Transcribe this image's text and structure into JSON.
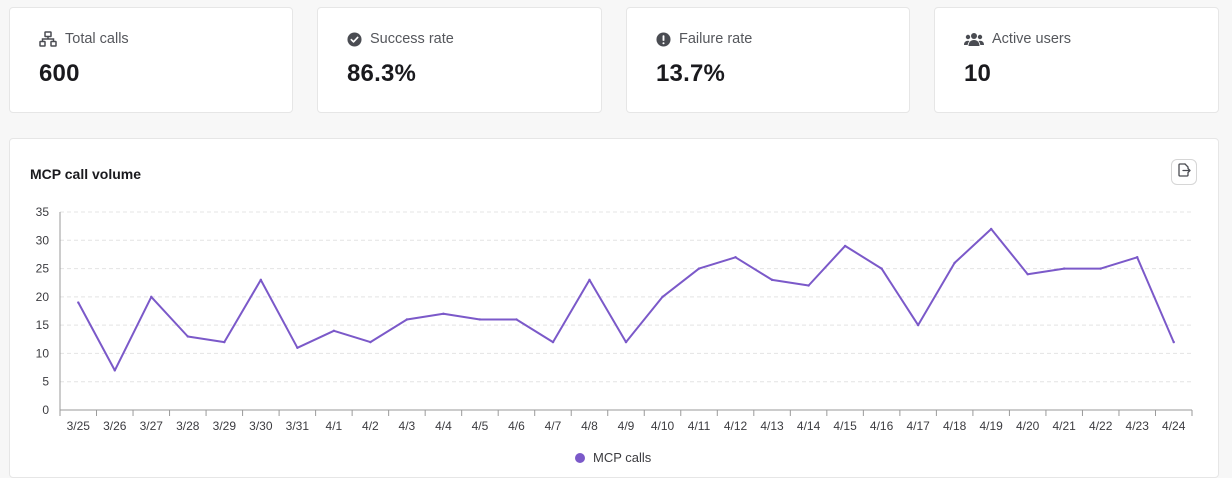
{
  "stats": [
    {
      "icon": "network-icon",
      "label": "Total calls",
      "value": "600"
    },
    {
      "icon": "check-circle-icon",
      "label": "Success rate",
      "value": "86.3%"
    },
    {
      "icon": "alert-circle-icon",
      "label": "Failure rate",
      "value": "13.7%"
    },
    {
      "icon": "users-icon",
      "label": "Active users",
      "value": "10"
    }
  ],
  "chart": {
    "title": "MCP call volume",
    "export_icon": "export-icon"
  },
  "chart_data": {
    "type": "line",
    "x": [
      "3/25",
      "3/26",
      "3/27",
      "3/28",
      "3/29",
      "3/30",
      "3/31",
      "4/1",
      "4/2",
      "4/3",
      "4/4",
      "4/5",
      "4/6",
      "4/7",
      "4/8",
      "4/9",
      "4/10",
      "4/11",
      "4/12",
      "4/13",
      "4/14",
      "4/15",
      "4/16",
      "4/17",
      "4/18",
      "4/19",
      "4/20",
      "4/21",
      "4/22",
      "4/23",
      "4/24"
    ],
    "series": [
      {
        "name": "MCP calls",
        "color": "#7b59c9",
        "values": [
          19,
          7,
          20,
          13,
          12,
          23,
          11,
          14,
          12,
          16,
          17,
          16,
          16,
          12,
          23,
          12,
          20,
          25,
          27,
          23,
          22,
          29,
          25,
          15,
          26,
          32,
          24,
          25,
          25,
          27,
          12
        ]
      }
    ],
    "yticks": [
      0,
      5,
      10,
      15,
      20,
      25,
      30,
      35
    ],
    "ylim": [
      0,
      35
    ],
    "grid": true,
    "legend": "bottom-center"
  }
}
